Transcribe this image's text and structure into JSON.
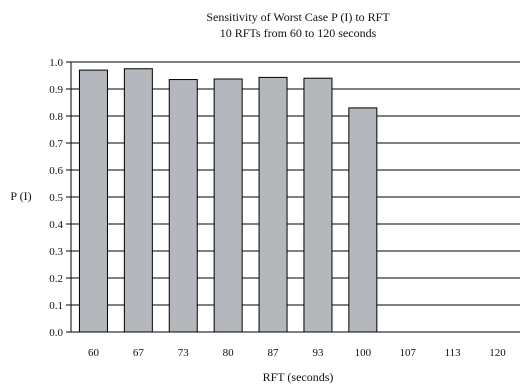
{
  "chart_data": {
    "type": "bar",
    "title": "Sensitivity of Worst Case P (I) to RFT",
    "subtitle": "10 RFTs from 60 to 120 seconds",
    "xlabel": "RFT (seconds)",
    "ylabel": "P (I)",
    "categories": [
      "60",
      "67",
      "73",
      "80",
      "87",
      "93",
      "100",
      "107",
      "113",
      "120"
    ],
    "values": [
      0.97,
      0.975,
      0.935,
      0.937,
      0.943,
      0.94,
      0.83,
      null,
      null,
      null
    ],
    "ylim": [
      0,
      1.0
    ],
    "yticks": [
      "0.0",
      "0.1",
      "0.2",
      "0.3",
      "0.4",
      "0.5",
      "0.6",
      "0.7",
      "0.8",
      "0.9",
      "1.0"
    ],
    "grid": true,
    "legend": "none",
    "colors": {
      "bar": "#b4b7bc",
      "bar_stroke": "#000000",
      "grid": "#000000"
    }
  }
}
